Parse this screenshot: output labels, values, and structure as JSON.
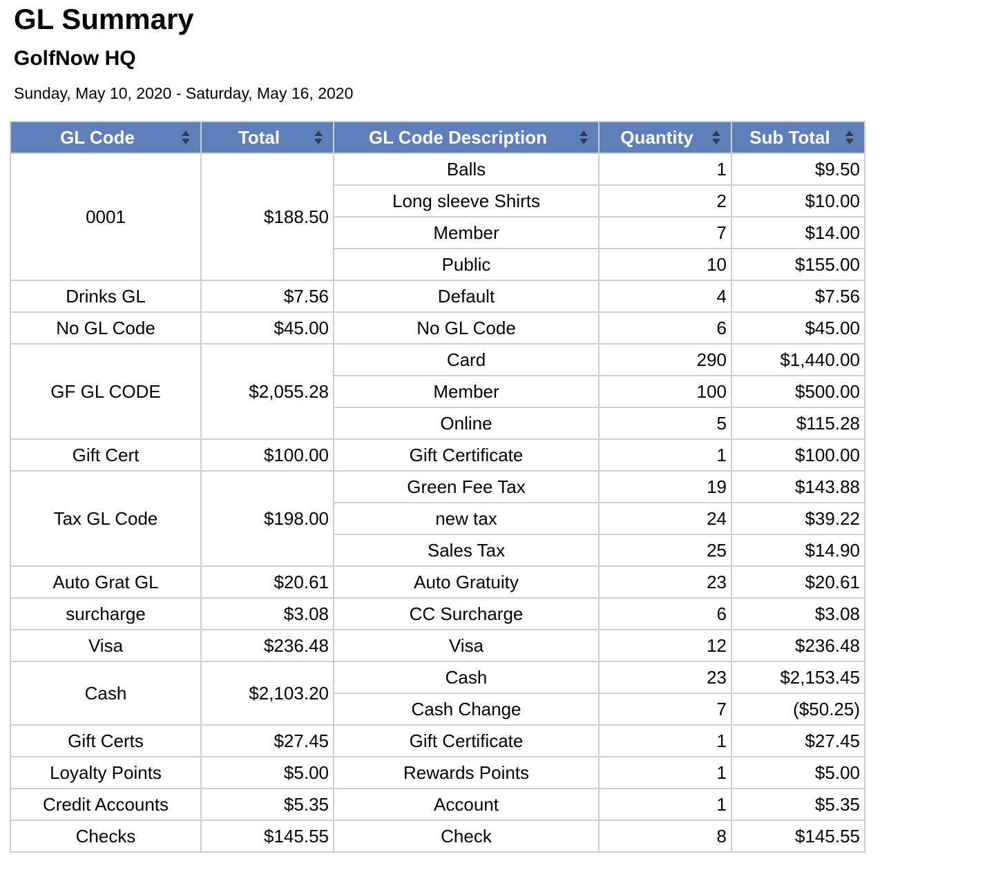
{
  "report": {
    "title": "GL Summary",
    "subtitle": "GolfNow HQ",
    "date_range": "Sunday, May 10, 2020 - Saturday, May 16, 2020"
  },
  "colors": {
    "header_background": "#5f7fbb",
    "header_text": "#ffffff",
    "grid_lines": "#cfcfcf"
  },
  "table": {
    "columns": [
      {
        "key": "gl_code",
        "label": "GL Code",
        "sort_icon": "sort-icon"
      },
      {
        "key": "total",
        "label": "Total",
        "sort_icon": "sort-icon"
      },
      {
        "key": "description",
        "label": "GL Code Description",
        "sort_icon": "sort-icon"
      },
      {
        "key": "quantity",
        "label": "Quantity",
        "sort_icon": "sort-icon"
      },
      {
        "key": "sub_total",
        "label": "Sub Total",
        "sort_icon": "sort-icon"
      }
    ],
    "groups": [
      {
        "gl_code": "0001",
        "total": "$188.50",
        "lines": [
          {
            "description": "Balls",
            "quantity": "1",
            "sub_total": "$9.50"
          },
          {
            "description": "Long sleeve Shirts",
            "quantity": "2",
            "sub_total": "$10.00"
          },
          {
            "description": "Member",
            "quantity": "7",
            "sub_total": "$14.00"
          },
          {
            "description": "Public",
            "quantity": "10",
            "sub_total": "$155.00"
          }
        ]
      },
      {
        "gl_code": "Drinks GL",
        "total": "$7.56",
        "lines": [
          {
            "description": "Default",
            "quantity": "4",
            "sub_total": "$7.56"
          }
        ]
      },
      {
        "gl_code": "No GL Code",
        "total": "$45.00",
        "lines": [
          {
            "description": "No GL Code",
            "quantity": "6",
            "sub_total": "$45.00"
          }
        ]
      },
      {
        "gl_code": "GF GL CODE",
        "total": "$2,055.28",
        "lines": [
          {
            "description": "Card",
            "quantity": "290",
            "sub_total": "$1,440.00"
          },
          {
            "description": "Member",
            "quantity": "100",
            "sub_total": "$500.00"
          },
          {
            "description": "Online",
            "quantity": "5",
            "sub_total": "$115.28"
          }
        ]
      },
      {
        "gl_code": "Gift Cert",
        "total": "$100.00",
        "lines": [
          {
            "description": "Gift Certificate",
            "quantity": "1",
            "sub_total": "$100.00"
          }
        ]
      },
      {
        "gl_code": "Tax GL Code",
        "total": "$198.00",
        "lines": [
          {
            "description": "Green Fee Tax",
            "quantity": "19",
            "sub_total": "$143.88"
          },
          {
            "description": "new tax",
            "quantity": "24",
            "sub_total": "$39.22"
          },
          {
            "description": "Sales Tax",
            "quantity": "25",
            "sub_total": "$14.90"
          }
        ]
      },
      {
        "gl_code": "Auto Grat GL",
        "total": "$20.61",
        "lines": [
          {
            "description": "Auto Gratuity",
            "quantity": "23",
            "sub_total": "$20.61"
          }
        ]
      },
      {
        "gl_code": "surcharge",
        "total": "$3.08",
        "lines": [
          {
            "description": "CC Surcharge",
            "quantity": "6",
            "sub_total": "$3.08"
          }
        ]
      },
      {
        "gl_code": "Visa",
        "total": "$236.48",
        "lines": [
          {
            "description": "Visa",
            "quantity": "12",
            "sub_total": "$236.48"
          }
        ]
      },
      {
        "gl_code": "Cash",
        "total": "$2,103.20",
        "lines": [
          {
            "description": "Cash",
            "quantity": "23",
            "sub_total": "$2,153.45"
          },
          {
            "description": "Cash Change",
            "quantity": "7",
            "sub_total": "($50.25)"
          }
        ]
      },
      {
        "gl_code": "Gift Certs",
        "total": "$27.45",
        "lines": [
          {
            "description": "Gift Certificate",
            "quantity": "1",
            "sub_total": "$27.45"
          }
        ]
      },
      {
        "gl_code": "Loyalty Points",
        "total": "$5.00",
        "lines": [
          {
            "description": "Rewards Points",
            "quantity": "1",
            "sub_total": "$5.00"
          }
        ]
      },
      {
        "gl_code": "Credit Accounts",
        "total": "$5.35",
        "lines": [
          {
            "description": "Account",
            "quantity": "1",
            "sub_total": "$5.35"
          }
        ]
      },
      {
        "gl_code": "Checks",
        "total": "$145.55",
        "lines": [
          {
            "description": "Check",
            "quantity": "8",
            "sub_total": "$145.55"
          }
        ]
      }
    ]
  }
}
